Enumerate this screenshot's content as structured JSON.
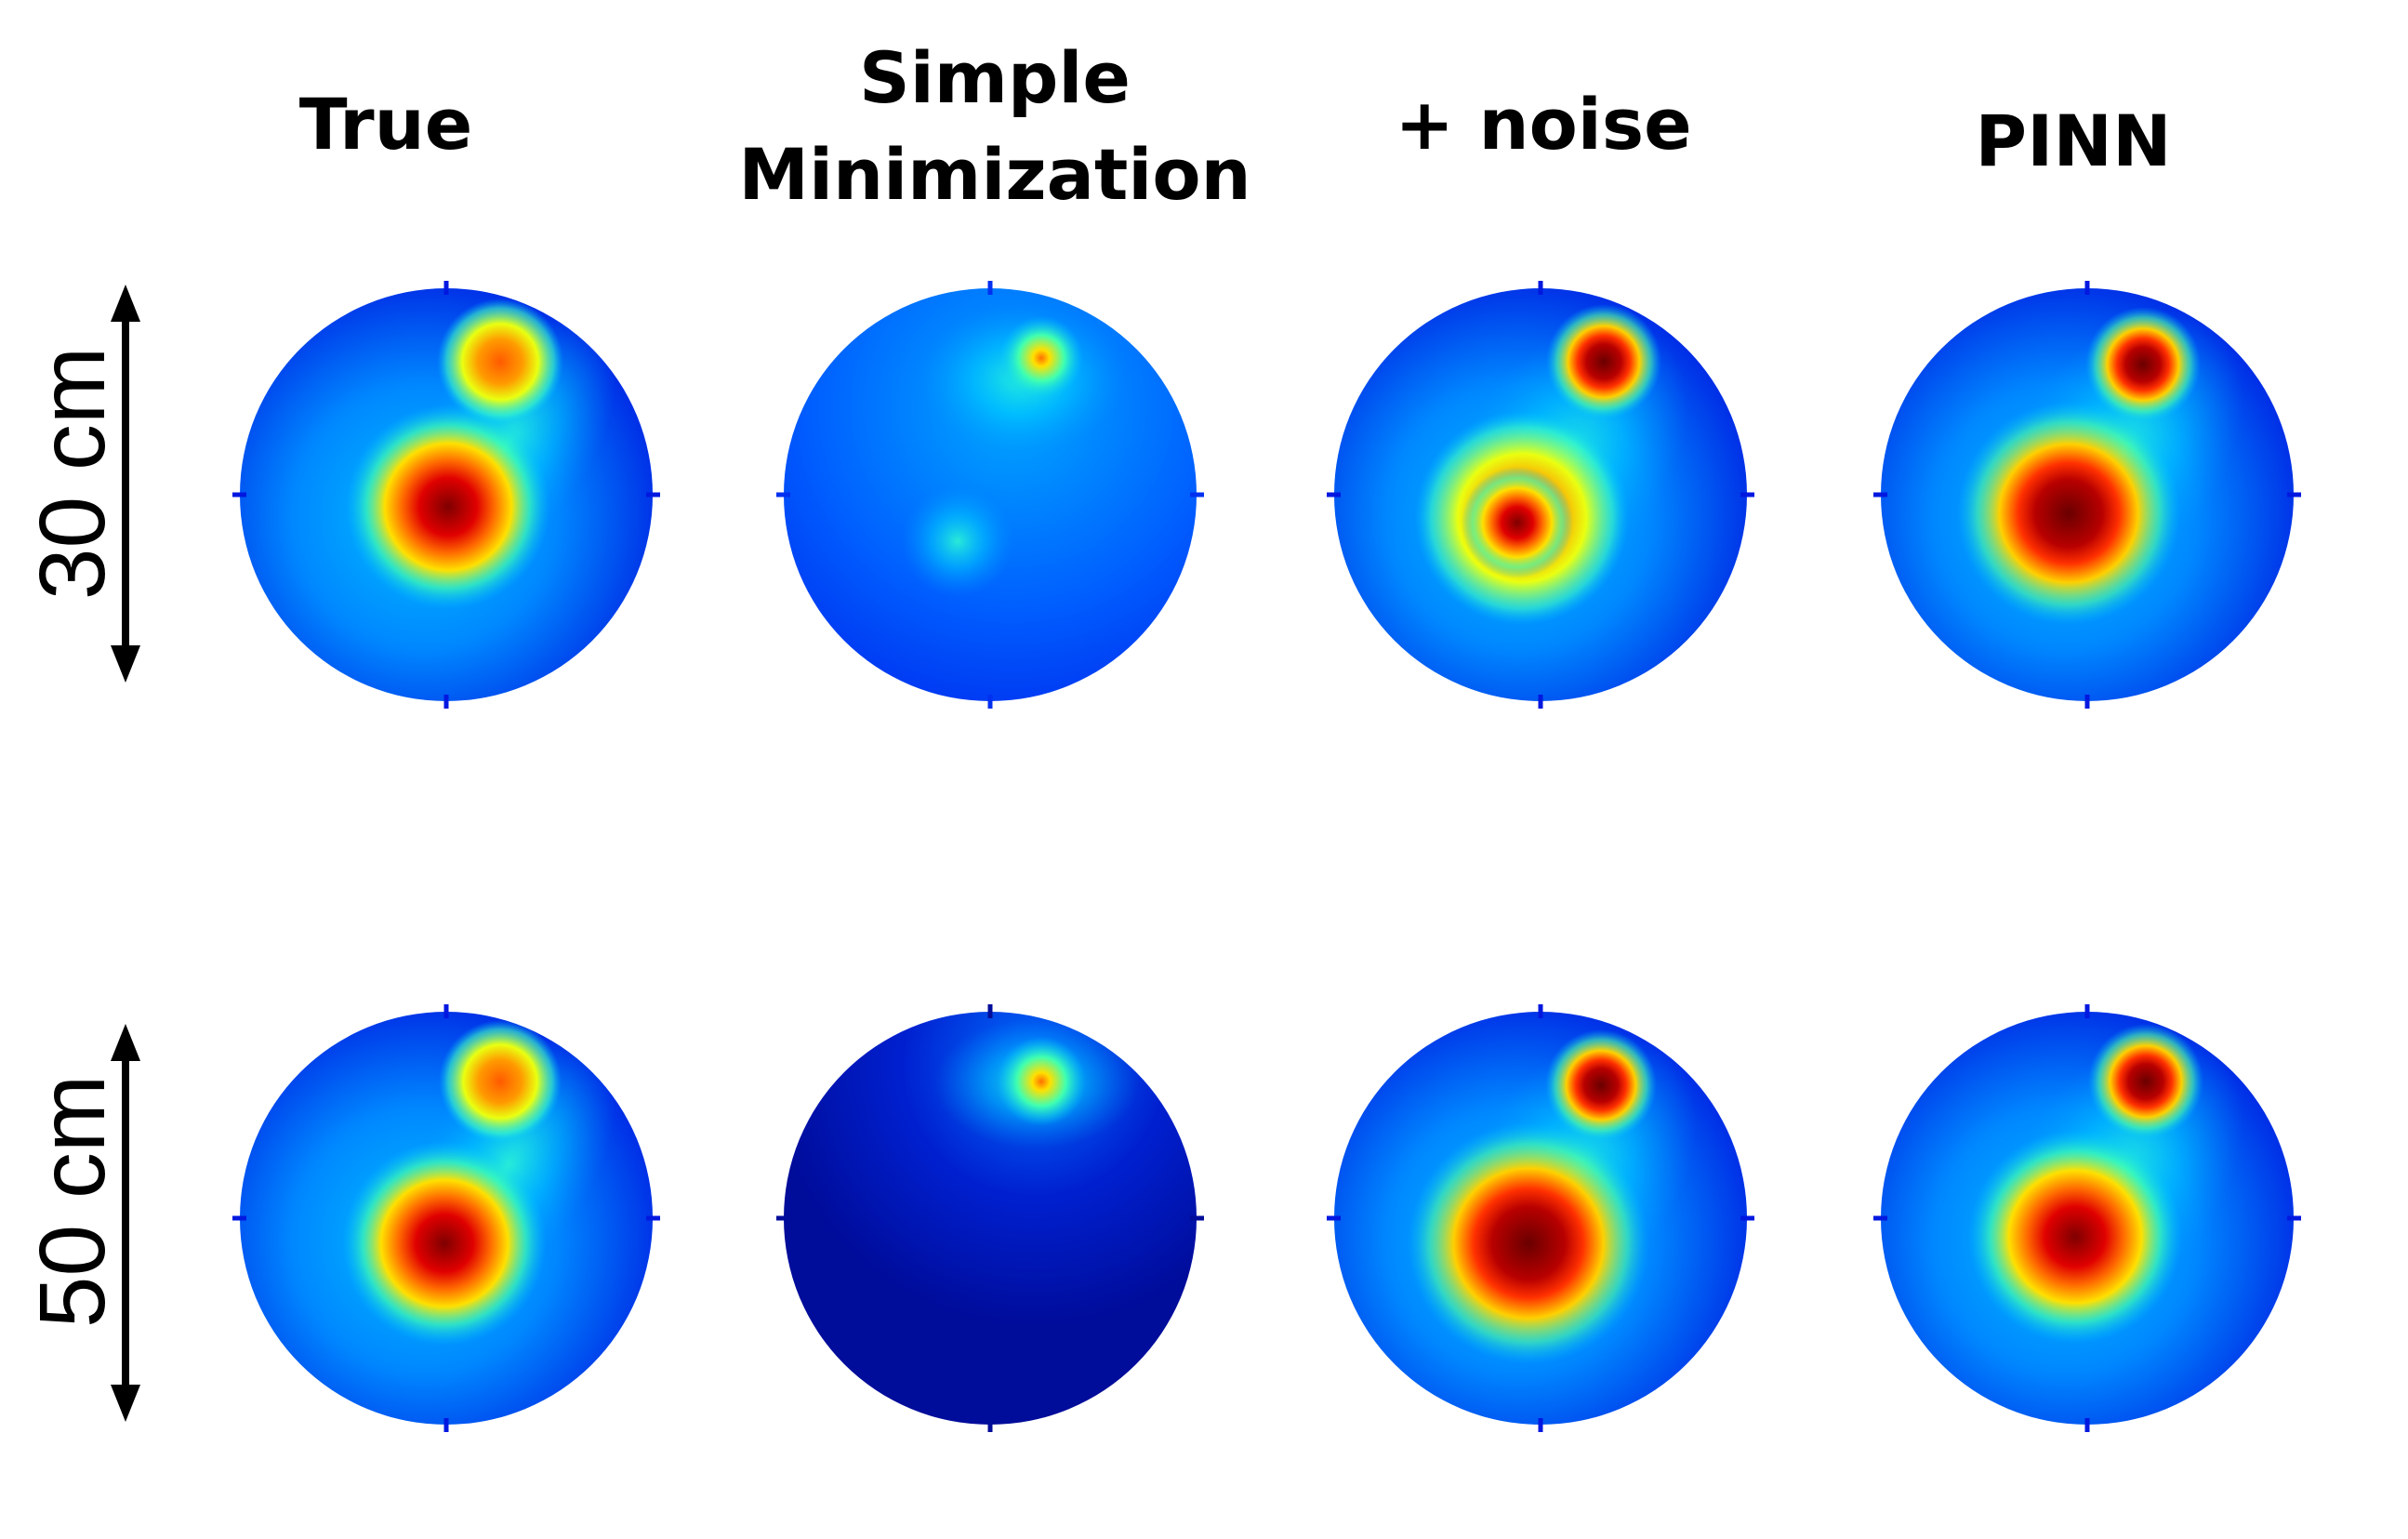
{
  "columns": [
    {
      "id": "true",
      "title_lines": [
        "True"
      ]
    },
    {
      "id": "simple",
      "title_lines": [
        "Simple",
        "Minimization"
      ]
    },
    {
      "id": "noise",
      "title_lines": [
        "+ noise"
      ]
    },
    {
      "id": "pinn",
      "title_lines": [
        "PINN"
      ]
    }
  ],
  "rows": [
    {
      "id": "row-30",
      "label": "30 cm"
    },
    {
      "id": "row-50",
      "label": "50 cm"
    }
  ],
  "colormap": "jet",
  "colors": {
    "ink": "#000000",
    "background": "#ffffff"
  }
}
